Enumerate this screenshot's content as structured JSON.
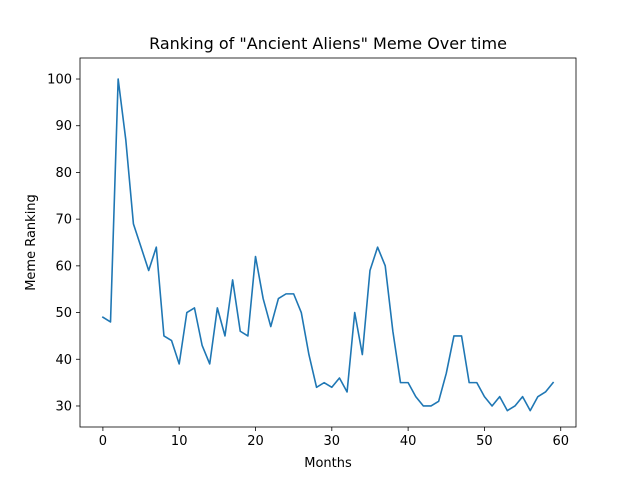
{
  "chart_data": {
    "type": "line",
    "title": "Ranking of \"Ancient Aliens\" Meme Over time",
    "xlabel": "Months",
    "ylabel": "Meme Ranking",
    "xlim": [
      -3,
      62
    ],
    "ylim": [
      25.5,
      104.5
    ],
    "xticks": [
      0,
      10,
      20,
      30,
      40,
      50,
      60
    ],
    "yticks": [
      30,
      40,
      50,
      60,
      70,
      80,
      90,
      100
    ],
    "grid": false,
    "series": [
      {
        "color": "#1f77b4",
        "x": [
          0,
          1,
          2,
          3,
          4,
          5,
          6,
          7,
          8,
          9,
          10,
          11,
          12,
          13,
          14,
          15,
          16,
          17,
          18,
          19,
          20,
          21,
          22,
          23,
          24,
          25,
          26,
          27,
          28,
          29,
          30,
          31,
          32,
          33,
          34,
          35,
          36,
          37,
          38,
          39,
          40,
          41,
          42,
          43,
          44,
          45,
          46,
          47,
          48,
          49,
          50,
          51,
          52,
          53,
          54,
          55,
          56,
          57,
          58,
          59
        ],
        "values": [
          49,
          48,
          100,
          87,
          69,
          64,
          59,
          64,
          45,
          44,
          39,
          50,
          51,
          43,
          39,
          51,
          45,
          57,
          46,
          45,
          62,
          53,
          47,
          53,
          54,
          54,
          50,
          41,
          34,
          35,
          34,
          36,
          33,
          50,
          41,
          59,
          64,
          60,
          46,
          35,
          35,
          32,
          30,
          30,
          31,
          37,
          45,
          45,
          35,
          35,
          32,
          30,
          32,
          29,
          30,
          32,
          29,
          32,
          33,
          35
        ]
      }
    ]
  }
}
